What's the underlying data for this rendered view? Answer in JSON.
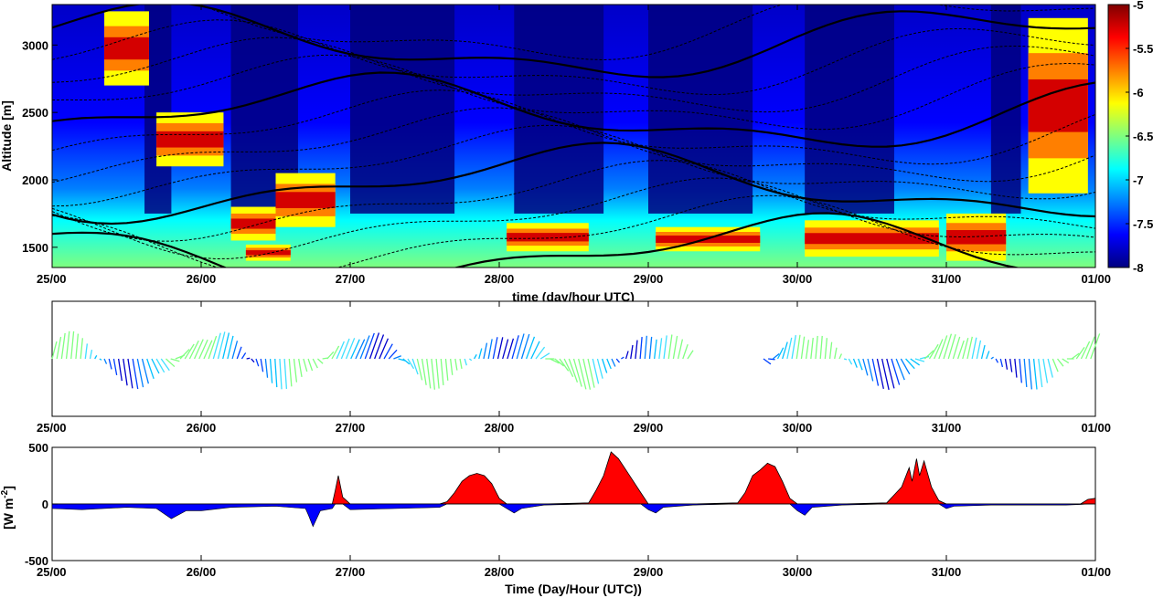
{
  "colors": {
    "jet": [
      "#00007f",
      "#0000ff",
      "#007fff",
      "#00ffff",
      "#7fff7f",
      "#ffff00",
      "#ff7f00",
      "#ff0000",
      "#7f0000"
    ],
    "positive_flux": "#ff0000",
    "negative_flux": "#0000ff",
    "contour": "#000000"
  },
  "chart_data": [
    {
      "type": "heatmap",
      "title": "",
      "xlabel": "time (day/hour UTC)",
      "ylabel": "Altitude [m]",
      "x_tick_labels": [
        "25/00",
        "26/00",
        "27/00",
        "28/00",
        "29/00",
        "30/00",
        "31/00",
        "01/00"
      ],
      "xlim_days": [
        25,
        32
      ],
      "ylim": [
        1350,
        3300
      ],
      "y_ticks": [
        1500,
        2000,
        2500,
        3000
      ],
      "y_tick_labels": [
        "1500",
        "2000",
        "2500",
        "3000"
      ],
      "colorbar": {
        "clim": [
          -8,
          -5
        ],
        "ticks": [
          -5,
          -5.5,
          -6,
          -6.5,
          -7,
          -7.5,
          -8
        ],
        "tick_labels": [
          "-5",
          "-5.5",
          "-6",
          "-6.5",
          "-7",
          "-7.5",
          "-8"
        ],
        "colormap": "jet"
      },
      "cloud_base_layers": [
        {
          "day_start": 25.35,
          "day_end": 25.65,
          "alt_top": 3250,
          "alt_bottom": 2700
        },
        {
          "day_start": 25.7,
          "day_end": 26.15,
          "alt_top": 2500,
          "alt_bottom": 2100
        },
        {
          "day_start": 26.2,
          "day_end": 26.5,
          "alt_top": 1800,
          "alt_bottom": 1550
        },
        {
          "day_start": 26.3,
          "day_end": 26.6,
          "alt_top": 1520,
          "alt_bottom": 1400
        },
        {
          "day_start": 26.5,
          "day_end": 26.9,
          "alt_top": 2050,
          "alt_bottom": 1650
        },
        {
          "day_start": 28.05,
          "day_end": 28.6,
          "alt_top": 1680,
          "alt_bottom": 1470
        },
        {
          "day_start": 29.05,
          "day_end": 29.75,
          "alt_top": 1650,
          "alt_bottom": 1470
        },
        {
          "day_start": 30.05,
          "day_end": 30.95,
          "alt_top": 1700,
          "alt_bottom": 1430
        },
        {
          "day_start": 31.0,
          "day_end": 31.4,
          "alt_top": 1750,
          "alt_bottom": 1400
        },
        {
          "day_start": 31.55,
          "day_end": 31.95,
          "alt_top": 3200,
          "alt_bottom": 1900
        }
      ],
      "clear_columns_days": [
        [
          25.62,
          25.8
        ],
        [
          26.2,
          26.65
        ],
        [
          27.0,
          27.7
        ],
        [
          28.1,
          28.7
        ],
        [
          29.0,
          29.7
        ],
        [
          30.05,
          30.65
        ],
        [
          31.3,
          31.5
        ]
      ]
    },
    {
      "type": "quiver",
      "title": "",
      "xlabel": "",
      "ylabel": "",
      "x_tick_labels": [
        "25/00",
        "26/00",
        "27/00",
        "28/00",
        "29/00",
        "30/00",
        "31/00",
        "01/00"
      ],
      "xlim_days": [
        25,
        32
      ],
      "missing_data_days": [
        29.28,
        29.75
      ]
    },
    {
      "type": "area",
      "title": "",
      "xlabel": "Time (Day/Hour (UTC))",
      "ylabel": "[W m⁻²]",
      "ylabel_base": "[W m",
      "ylabel_sup": "-2",
      "ylabel_end": "]",
      "x_tick_labels": [
        "25/00",
        "26/00",
        "27/00",
        "28/00",
        "29/00",
        "30/00",
        "31/00",
        "01/00"
      ],
      "xlim_days": [
        25,
        32
      ],
      "ylim": [
        -500,
        500
      ],
      "y_ticks": [
        -500,
        0,
        500
      ],
      "y_tick_labels": [
        "-500",
        "0",
        "500"
      ],
      "series": [
        {
          "x_days": [
            25.0,
            25.2,
            25.5,
            25.7,
            25.8,
            25.9,
            26.0,
            26.2,
            26.5,
            26.7,
            26.72,
            26.75,
            26.8,
            26.88,
            26.9,
            26.92,
            26.95,
            27.0,
            27.3,
            27.6,
            27.65,
            27.7,
            27.75,
            27.8,
            27.85,
            27.9,
            27.95,
            28.0,
            28.05,
            28.1,
            28.15,
            28.3,
            28.6,
            28.65,
            28.7,
            28.75,
            28.8,
            28.85,
            28.9,
            28.95,
            29.0,
            29.05,
            29.1,
            29.3,
            29.6,
            29.65,
            29.7,
            29.75,
            29.8,
            29.85,
            29.9,
            29.95,
            30.0,
            30.05,
            30.1,
            30.3,
            30.6,
            30.65,
            30.7,
            30.75,
            30.77,
            30.8,
            30.82,
            30.85,
            30.9,
            30.95,
            31.0,
            31.05,
            31.3,
            31.6,
            31.8,
            31.9,
            31.95,
            32.0
          ],
          "y": [
            -40,
            -50,
            -30,
            -40,
            -130,
            -60,
            -60,
            -30,
            -20,
            -40,
            -100,
            -200,
            -60,
            -40,
            120,
            250,
            60,
            -50,
            -40,
            -30,
            20,
            100,
            200,
            250,
            270,
            250,
            180,
            50,
            -40,
            -80,
            -40,
            -10,
            10,
            120,
            250,
            460,
            400,
            300,
            200,
            100,
            -50,
            -80,
            -30,
            -10,
            10,
            100,
            250,
            300,
            360,
            330,
            200,
            50,
            -60,
            -100,
            -30,
            -10,
            10,
            80,
            150,
            320,
            200,
            400,
            250,
            380,
            150,
            30,
            -40,
            -20,
            -10,
            -10,
            -10,
            -5,
            40,
            50
          ]
        }
      ]
    }
  ]
}
